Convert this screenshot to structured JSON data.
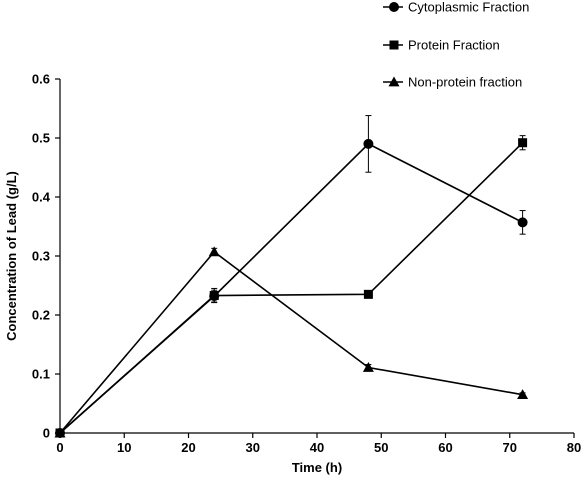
{
  "chart_data": {
    "type": "line",
    "title": "",
    "xlabel": "Time (h)",
    "ylabel": "Concentration of Lead (g/L)",
    "xlim": [
      0,
      80
    ],
    "ylim": [
      0,
      0.6
    ],
    "x_ticks": [
      0,
      10,
      20,
      30,
      40,
      50,
      60,
      70,
      80
    ],
    "x_tick_labels": [
      "0",
      "10",
      "20",
      "30",
      "40",
      "50",
      "60",
      "70",
      "80"
    ],
    "y_ticks": [
      0,
      0.1,
      0.2,
      0.3,
      0.4,
      0.5,
      0.6
    ],
    "y_tick_labels": [
      "0",
      "0.1",
      "0.2",
      "0.3",
      "0.4",
      "0.5",
      "0.6"
    ],
    "grid": false,
    "legend_position": "top-right",
    "series": [
      {
        "name": "Cytoplasmic Fraction",
        "marker": "circle",
        "color": "#000000",
        "x": [
          0,
          24,
          48,
          72
        ],
        "y": [
          0,
          0.232,
          0.49,
          0.357
        ],
        "error": [
          0,
          0.01,
          0.048,
          0.02
        ]
      },
      {
        "name": "Protein Fraction",
        "marker": "square",
        "color": "#000000",
        "x": [
          0,
          24,
          48,
          72
        ],
        "y": [
          0,
          0.233,
          0.235,
          0.492
        ],
        "error": [
          0,
          0.012,
          0.006,
          0.012
        ]
      },
      {
        "name": "Non-protein fraction",
        "marker": "triangle",
        "color": "#000000",
        "x": [
          0,
          24,
          48,
          72
        ],
        "y": [
          0,
          0.307,
          0.111,
          0.065
        ],
        "error": [
          0,
          0.006,
          0.005,
          0.003
        ]
      }
    ]
  }
}
